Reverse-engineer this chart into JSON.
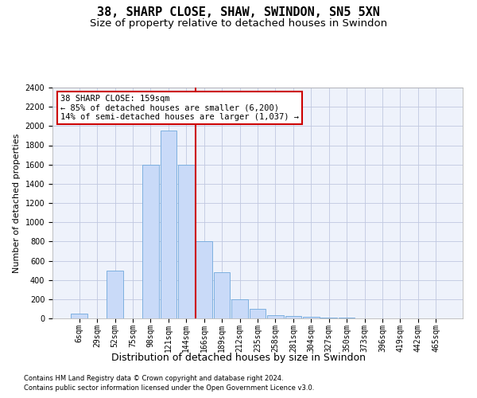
{
  "title": "38, SHARP CLOSE, SHAW, SWINDON, SN5 5XN",
  "subtitle": "Size of property relative to detached houses in Swindon",
  "xlabel": "Distribution of detached houses by size in Swindon",
  "ylabel": "Number of detached properties",
  "bar_labels": [
    "6sqm",
    "29sqm",
    "52sqm",
    "75sqm",
    "98sqm",
    "121sqm",
    "144sqm",
    "166sqm",
    "189sqm",
    "212sqm",
    "235sqm",
    "258sqm",
    "281sqm",
    "304sqm",
    "327sqm",
    "350sqm",
    "373sqm",
    "396sqm",
    "419sqm",
    "442sqm",
    "465sqm"
  ],
  "bar_values": [
    50,
    0,
    500,
    0,
    1600,
    1950,
    1600,
    800,
    480,
    200,
    100,
    35,
    25,
    20,
    10,
    5,
    2,
    1,
    1,
    1,
    1
  ],
  "bar_color": "#c9daf8",
  "bar_edgecolor": "#6fa8dc",
  "ylim": [
    0,
    2400
  ],
  "yticks": [
    0,
    200,
    400,
    600,
    800,
    1000,
    1200,
    1400,
    1600,
    1800,
    2000,
    2200,
    2400
  ],
  "red_line_index": 7,
  "red_line_color": "#cc0000",
  "annotation_line1": "38 SHARP CLOSE: 159sqm",
  "annotation_line2": "← 85% of detached houses are smaller (6,200)",
  "annotation_line3": "14% of semi-detached houses are larger (1,037) →",
  "footer1": "Contains HM Land Registry data © Crown copyright and database right 2024.",
  "footer2": "Contains public sector information licensed under the Open Government Licence v3.0.",
  "grid_color": "#c0c8e0",
  "background_color": "#eef2fb",
  "title_fontsize": 11,
  "subtitle_fontsize": 9.5,
  "tick_fontsize": 7,
  "ylabel_fontsize": 8,
  "xlabel_fontsize": 9,
  "annotation_fontsize": 7.5,
  "footer_fontsize": 6
}
